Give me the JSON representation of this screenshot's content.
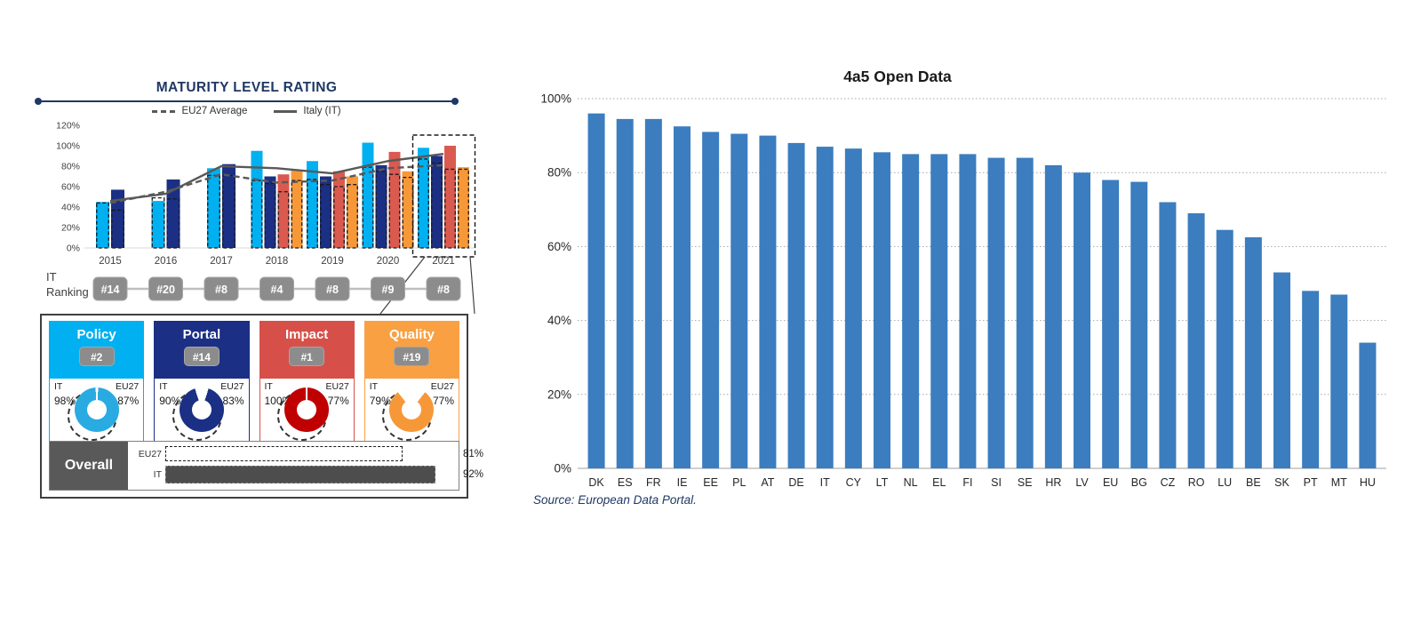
{
  "left_panel": {
    "title": "MATURITY LEVEL RATING",
    "legend": [
      {
        "label": "EU27 Average",
        "style": "dashed"
      },
      {
        "label": "Italy (IT)",
        "style": "solid"
      }
    ],
    "it_label": "IT",
    "eu_label": "EU27",
    "ranking": {
      "label_line1": "IT",
      "label_line2": "Ranking",
      "items": [
        {
          "year": "2015",
          "rank": "#14"
        },
        {
          "year": "2016",
          "rank": "#20"
        },
        {
          "year": "2017",
          "rank": "#8"
        },
        {
          "year": "2018",
          "rank": "#4"
        },
        {
          "year": "2019",
          "rank": "#8"
        },
        {
          "year": "2020",
          "rank": "#9"
        },
        {
          "year": "2021",
          "rank": "#8"
        }
      ]
    },
    "cards": [
      {
        "name": "Policy",
        "rank": "#2",
        "it": "98%",
        "eu": "87%",
        "it_pct": 98,
        "color": "#00B0F0",
        "donut_color": "#29ABE2"
      },
      {
        "name": "Portal",
        "rank": "#14",
        "it": "90%",
        "eu": "83%",
        "it_pct": 90,
        "color": "#1B2F84",
        "donut_color": "#1B2F84"
      },
      {
        "name": "Impact",
        "rank": "#1",
        "it": "100%",
        "eu": "77%",
        "it_pct": 100,
        "color": "#D65049",
        "donut_color": "#C00000"
      },
      {
        "name": "Quality",
        "rank": "#19",
        "it": "79%",
        "eu": "77%",
        "it_pct": 79,
        "color": "#F9A042",
        "donut_color": "#F79838"
      }
    ],
    "overall": {
      "label": "Overall",
      "eu_label": "EU27",
      "eu_value": "81%",
      "eu_pct": 81,
      "it_label": "IT",
      "it_value": "92%",
      "it_pct": 92
    }
  },
  "right_chart": {
    "title": "4a5 Open Data",
    "source": "Source: European Data Portal."
  },
  "chart_data": [
    {
      "type": "bar+line",
      "title": "MATURITY LEVEL RATING",
      "years": [
        "2015",
        "2016",
        "2017",
        "2018",
        "2019",
        "2020",
        "2021"
      ],
      "ylim": [
        0,
        120
      ],
      "ytick_step": 20,
      "grid": false,
      "legend_position": "top",
      "series": [
        {
          "name": "Policy (IT)",
          "color": "#00B0F0",
          "values": [
            45,
            46,
            78,
            95,
            85,
            103,
            98
          ]
        },
        {
          "name": "Portal (IT)",
          "color": "#1B2F84",
          "values": [
            57,
            67,
            82,
            70,
            70,
            81,
            90
          ]
        },
        {
          "name": "Impact (IT)",
          "color": "#DA5A50",
          "values": [
            null,
            null,
            null,
            72,
            75,
            94,
            100
          ]
        },
        {
          "name": "Quality (IT)",
          "color": "#F79838",
          "values": [
            null,
            null,
            null,
            76,
            70,
            75,
            79
          ]
        }
      ],
      "eu27_dashed_series": [
        {
          "name": "Policy (EU27)",
          "values": [
            44,
            49,
            71,
            66,
            67,
            79,
            87
          ]
        },
        {
          "name": "Portal (EU27)",
          "values": [
            37,
            48,
            71,
            63,
            62,
            75,
            83
          ]
        },
        {
          "name": "Impact (EU27)",
          "values": [
            null,
            null,
            null,
            55,
            60,
            72,
            77
          ]
        },
        {
          "name": "Quality (EU27)",
          "values": [
            null,
            null,
            null,
            66,
            62,
            69,
            77
          ]
        }
      ],
      "lines": [
        {
          "name": "EU27 Average",
          "style": "dashed",
          "color": "#595959",
          "values": [
            44,
            55,
            72,
            64,
            66,
            78,
            81
          ]
        },
        {
          "name": "Italy (IT)",
          "style": "solid",
          "color": "#595959",
          "values": [
            46,
            53,
            80,
            78,
            73,
            85,
            92
          ]
        }
      ]
    },
    {
      "type": "bar",
      "title": "4a5 Open Data",
      "categories": [
        "DK",
        "ES",
        "FR",
        "IE",
        "EE",
        "PL",
        "AT",
        "DE",
        "IT",
        "CY",
        "LT",
        "NL",
        "EL",
        "FI",
        "SI",
        "SE",
        "HR",
        "LV",
        "EU",
        "BG",
        "CZ",
        "RO",
        "LU",
        "BE",
        "SK",
        "PT",
        "MT",
        "HU"
      ],
      "values": [
        96,
        94.5,
        94.5,
        92.5,
        91,
        90.5,
        90,
        88,
        87,
        86.5,
        85.5,
        85,
        85,
        85,
        84,
        84,
        82,
        80,
        78,
        77.5,
        72,
        69,
        64.5,
        62.5,
        53,
        48,
        47,
        34
      ],
      "ylim": [
        0,
        100
      ],
      "ytick_step": 20,
      "grid": true,
      "bar_color": "#3B7DBE",
      "xlabel": "",
      "ylabel": "",
      "source": "Source: European Data Portal."
    }
  ]
}
